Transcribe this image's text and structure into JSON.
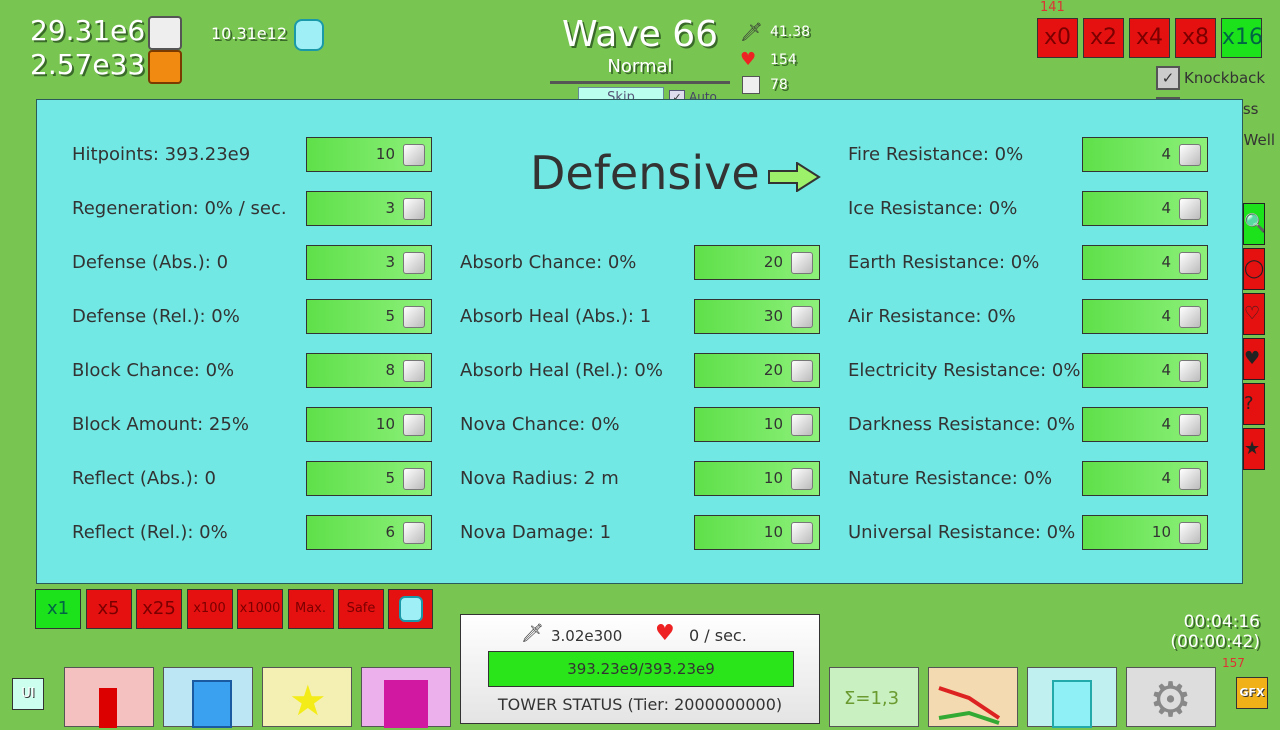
{
  "resources": {
    "white_cubes": "29.31e6",
    "orange_cubes": "2.57e33",
    "crystals": "10.31e12"
  },
  "wave": {
    "title": "Wave 66",
    "difficulty": "Normal",
    "skip_label": "Skip",
    "auto_label": "Auto"
  },
  "wave_stats": {
    "damage": "41.38",
    "health": "154",
    "count": "78"
  },
  "speed": {
    "counter": "141",
    "buttons": [
      {
        "label": "x0",
        "active": false
      },
      {
        "label": "x2",
        "active": false
      },
      {
        "label": "x4",
        "active": false
      },
      {
        "label": "x8",
        "active": false
      },
      {
        "label": "x16",
        "active": true
      }
    ]
  },
  "options": [
    {
      "label": "Knockback",
      "checked": true
    },
    {
      "label": "Compress",
      "checked": false
    },
    {
      "label": "Gravity Well",
      "checked": false
    }
  ],
  "panel": {
    "title": "Defensive",
    "left": [
      {
        "label": "Hitpoints: 393.23e9",
        "cost": "10"
      },
      {
        "label": "Regeneration: 0% / sec.",
        "cost": "3"
      },
      {
        "label": "Defense (Abs.): 0",
        "cost": "3"
      },
      {
        "label": "Defense (Rel.): 0%",
        "cost": "5"
      },
      {
        "label": "Block Chance: 0%",
        "cost": "8"
      },
      {
        "label": "Block Amount: 25%",
        "cost": "10"
      },
      {
        "label": "Reflect (Abs.): 0",
        "cost": "5"
      },
      {
        "label": "Reflect (Rel.): 0%",
        "cost": "6"
      }
    ],
    "middle": [
      {
        "label": "Absorb Chance: 0%",
        "cost": "20"
      },
      {
        "label": "Absorb Heal (Abs.): 1",
        "cost": "30"
      },
      {
        "label": "Absorb Heal (Rel.): 0%",
        "cost": "20"
      },
      {
        "label": "Nova Chance: 0%",
        "cost": "10"
      },
      {
        "label": "Nova Radius: 2 m",
        "cost": "10"
      },
      {
        "label": "Nova Damage: 1",
        "cost": "10"
      }
    ],
    "right": [
      {
        "label": "Fire Resistance: 0%",
        "cost": "4"
      },
      {
        "label": "Ice Resistance: 0%",
        "cost": "4"
      },
      {
        "label": "Earth Resistance: 0%",
        "cost": "4"
      },
      {
        "label": "Air Resistance: 0%",
        "cost": "4"
      },
      {
        "label": "Electricity Resistance: 0%",
        "cost": "4"
      },
      {
        "label": "Darkness Resistance: 0%",
        "cost": "4"
      },
      {
        "label": "Nature Resistance: 0%",
        "cost": "4"
      },
      {
        "label": "Universal Resistance: 0%",
        "cost": "10"
      }
    ]
  },
  "multipliers": [
    {
      "label": "x1",
      "active": true
    },
    {
      "label": "x5"
    },
    {
      "label": "x25"
    },
    {
      "label": "x100"
    },
    {
      "label": "x1000"
    },
    {
      "label": "Max."
    },
    {
      "label": "Safe"
    }
  ],
  "tower": {
    "damage": "3.02e300",
    "regen": "0 / sec.",
    "hp": "393.23e9/393.23e9",
    "hp_fraction": 1.0,
    "status": "TOWER STATUS (Tier: 2000000000)"
  },
  "timer": {
    "total": "00:04:16",
    "wave": "(00:00:42)",
    "counter": "157"
  },
  "ui_label": "UI",
  "gfx_label": "GFX",
  "side_icons": [
    "zoom-in",
    "range",
    "heart-plus",
    "heart-minus",
    "help",
    "star"
  ]
}
